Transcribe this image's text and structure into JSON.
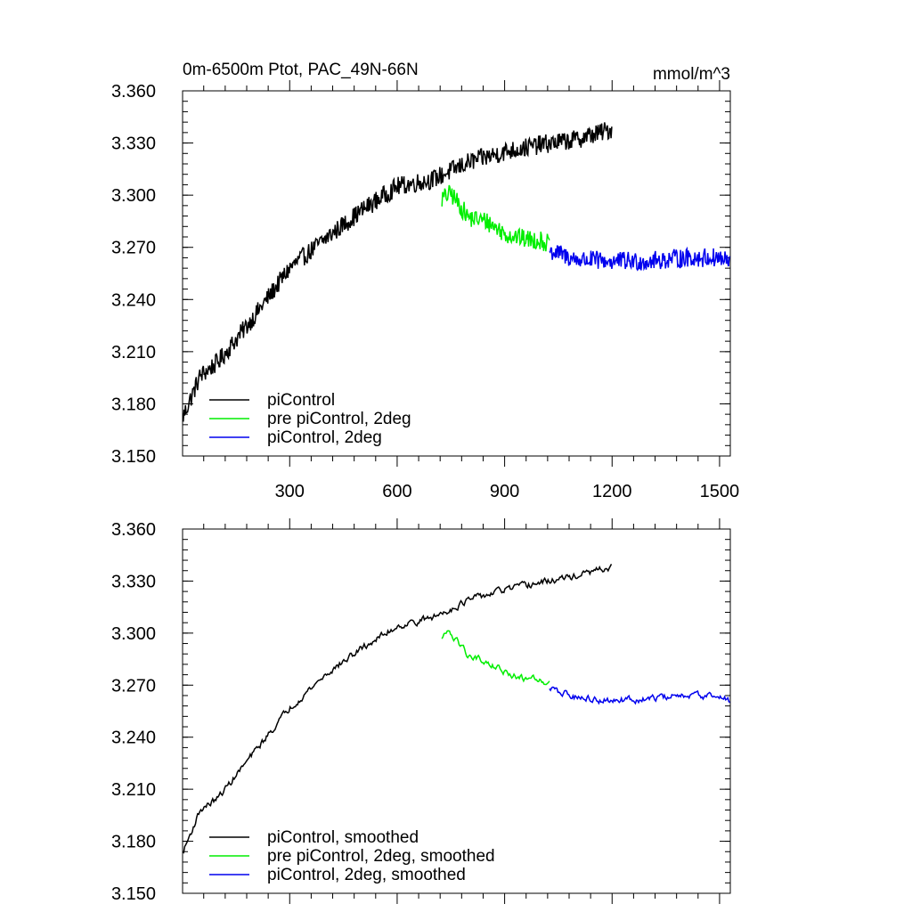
{
  "chart_data": [
    {
      "type": "line",
      "title": "0m-6500m Ptot, PAC_49N-66N",
      "units": "mmol/m^3",
      "xlim": [
        1,
        1530
      ],
      "ylim": [
        3.15,
        3.36
      ],
      "x_ticks": [
        300,
        600,
        900,
        1200,
        1500
      ],
      "x_tick_labels": [
        "300",
        "600",
        "900",
        "1200",
        "1500"
      ],
      "y_ticks": [
        3.15,
        3.18,
        3.21,
        3.24,
        3.27,
        3.3,
        3.33,
        3.36
      ],
      "y_tick_labels": [
        "3.150",
        "3.180",
        "3.210",
        "3.240",
        "3.270",
        "3.300",
        "3.330",
        "3.360"
      ],
      "legend_position": "bottom-left",
      "series": [
        {
          "name": "piControl",
          "color": "#000000",
          "x": [
            1,
            50,
            100,
            200,
            300,
            400,
            500,
            600,
            700,
            800,
            900,
            1000,
            1100,
            1200
          ],
          "y": [
            3.172,
            3.196,
            3.204,
            3.23,
            3.258,
            3.275,
            3.291,
            3.305,
            3.309,
            3.319,
            3.325,
            3.329,
            3.332,
            3.338
          ]
        },
        {
          "name": "pre piControl, 2deg",
          "color": "#00ee00",
          "x": [
            725,
            750,
            800,
            850,
            900,
            950,
            1000,
            1025
          ],
          "y": [
            3.298,
            3.301,
            3.287,
            3.285,
            3.278,
            3.275,
            3.274,
            3.272
          ]
        },
        {
          "name": "piControl, 2deg",
          "color": "#0000ee",
          "x": [
            1025,
            1100,
            1200,
            1300,
            1400,
            1500,
            1530
          ],
          "y": [
            3.268,
            3.263,
            3.262,
            3.262,
            3.264,
            3.264,
            3.261
          ]
        }
      ]
    },
    {
      "type": "line",
      "xlim": [
        1,
        1530
      ],
      "ylim": [
        3.15,
        3.36
      ],
      "x_ticks": [
        300,
        600,
        900,
        1200,
        1500
      ],
      "y_ticks": [
        3.15,
        3.18,
        3.21,
        3.24,
        3.27,
        3.3,
        3.33,
        3.36
      ],
      "y_tick_labels": [
        "3.150",
        "3.180",
        "3.210",
        "3.240",
        "3.270",
        "3.300",
        "3.330",
        "3.360"
      ],
      "legend_position": "bottom-left",
      "series": [
        {
          "name": "piControl, smoothed",
          "color": "#000000",
          "x": [
            1,
            50,
            100,
            200,
            300,
            400,
            500,
            600,
            700,
            800,
            900,
            1000,
            1100,
            1200
          ],
          "y": [
            3.173,
            3.198,
            3.205,
            3.231,
            3.257,
            3.276,
            3.291,
            3.304,
            3.309,
            3.319,
            3.325,
            3.329,
            3.333,
            3.338
          ]
        },
        {
          "name": "pre piControl, 2deg, smoothed",
          "color": "#00ee00",
          "x": [
            725,
            750,
            800,
            850,
            900,
            950,
            1000,
            1025
          ],
          "y": [
            3.298,
            3.3,
            3.287,
            3.284,
            3.277,
            3.274,
            3.274,
            3.271
          ]
        },
        {
          "name": "piControl, 2deg, smoothed",
          "color": "#0000ee",
          "x": [
            1025,
            1100,
            1200,
            1300,
            1400,
            1500,
            1530
          ],
          "y": [
            3.268,
            3.263,
            3.261,
            3.262,
            3.264,
            3.264,
            3.261
          ]
        }
      ]
    }
  ]
}
